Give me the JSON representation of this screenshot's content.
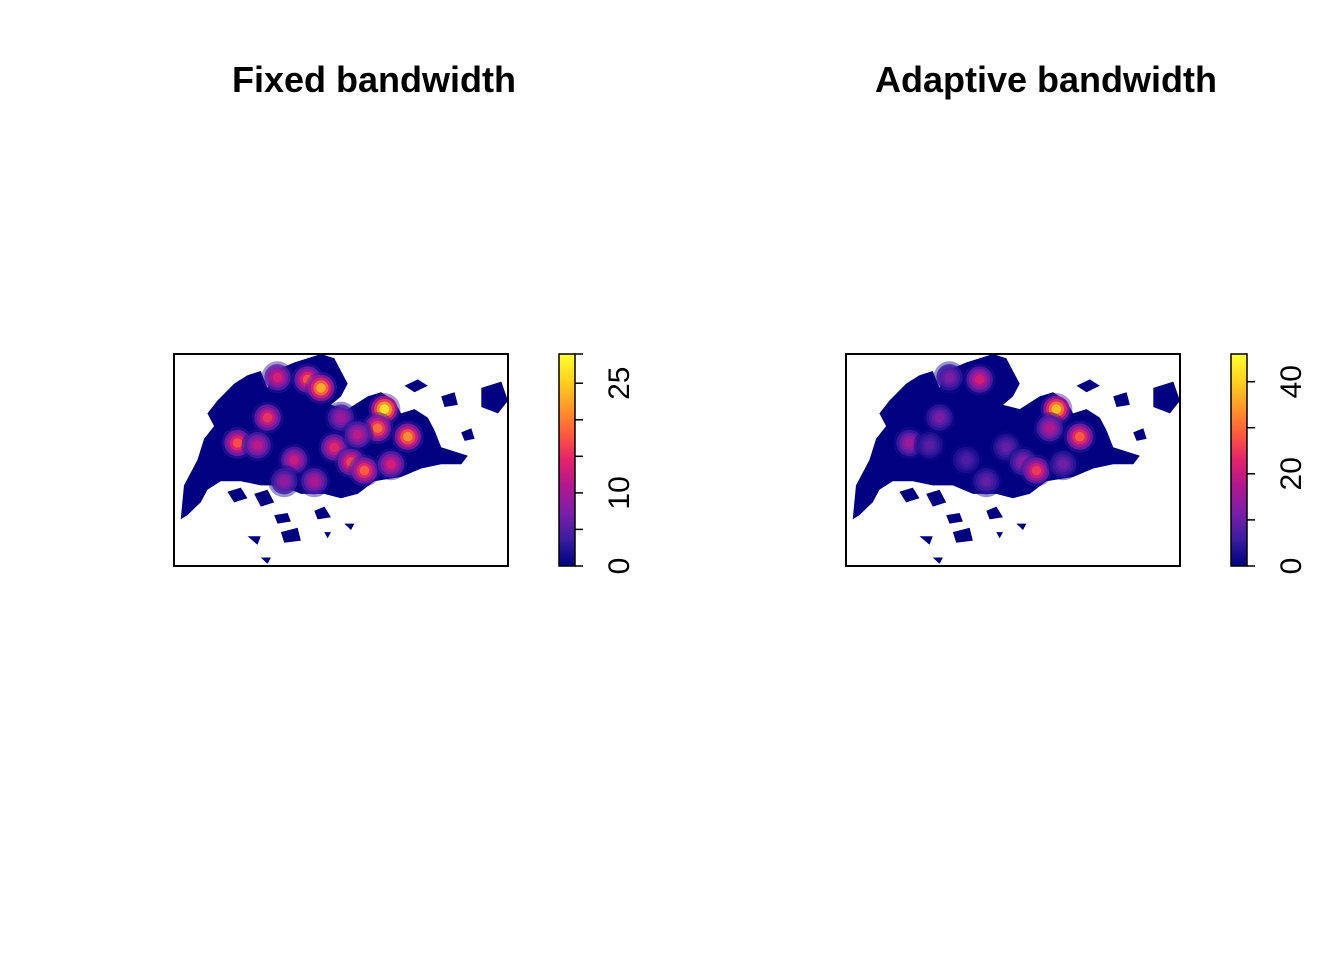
{
  "chart_data": [
    {
      "type": "heatmap",
      "title": "Fixed bandwidth",
      "legend": {
        "range": [
          0,
          29
        ],
        "label_ticks": [
          0,
          10,
          25
        ],
        "minor_ticks": [
          0,
          5,
          10,
          15,
          20,
          25,
          29
        ],
        "placement": "right"
      },
      "colormap": [
        "#000080",
        "#3a1ca0",
        "#7b1fa8",
        "#b0178f",
        "#e3236b",
        "#ff5a3c",
        "#ff9a28",
        "#ffd21e",
        "#ffff33"
      ],
      "hotspots": [
        {
          "u": 0.4,
          "v": 0.12,
          "value": 18
        },
        {
          "u": 0.44,
          "v": 0.16,
          "value": 24
        },
        {
          "u": 0.31,
          "v": 0.11,
          "value": 14
        },
        {
          "u": 0.63,
          "v": 0.26,
          "value": 28
        },
        {
          "u": 0.61,
          "v": 0.35,
          "value": 20
        },
        {
          "u": 0.7,
          "v": 0.39,
          "value": 22
        },
        {
          "u": 0.28,
          "v": 0.3,
          "value": 16
        },
        {
          "u": 0.19,
          "v": 0.42,
          "value": 18
        },
        {
          "u": 0.25,
          "v": 0.43,
          "value": 12
        },
        {
          "u": 0.36,
          "v": 0.5,
          "value": 13
        },
        {
          "u": 0.48,
          "v": 0.44,
          "value": 15
        },
        {
          "u": 0.53,
          "v": 0.51,
          "value": 17
        },
        {
          "u": 0.57,
          "v": 0.55,
          "value": 19
        },
        {
          "u": 0.65,
          "v": 0.52,
          "value": 14
        },
        {
          "u": 0.42,
          "v": 0.6,
          "value": 11
        },
        {
          "u": 0.33,
          "v": 0.6,
          "value": 9
        },
        {
          "u": 0.5,
          "v": 0.3,
          "value": 10
        },
        {
          "u": 0.55,
          "v": 0.38,
          "value": 12
        }
      ]
    },
    {
      "type": "heatmap",
      "title": "Adaptive bandwidth",
      "legend": {
        "range": [
          0,
          46
        ],
        "label_ticks": [
          0,
          20,
          40
        ],
        "minor_ticks": [
          0,
          10,
          20,
          30,
          40
        ],
        "placement": "right"
      },
      "colormap": [
        "#000080",
        "#3a1ca0",
        "#7b1fa8",
        "#b0178f",
        "#e3236b",
        "#ff5a3c",
        "#ff9a28",
        "#ffd21e",
        "#ffff33"
      ],
      "hotspots": [
        {
          "u": 0.4,
          "v": 0.12,
          "value": 22
        },
        {
          "u": 0.31,
          "v": 0.11,
          "value": 12
        },
        {
          "u": 0.63,
          "v": 0.26,
          "value": 40
        },
        {
          "u": 0.61,
          "v": 0.35,
          "value": 18
        },
        {
          "u": 0.7,
          "v": 0.39,
          "value": 30
        },
        {
          "u": 0.28,
          "v": 0.3,
          "value": 12
        },
        {
          "u": 0.19,
          "v": 0.42,
          "value": 16
        },
        {
          "u": 0.25,
          "v": 0.43,
          "value": 9
        },
        {
          "u": 0.48,
          "v": 0.44,
          "value": 10
        },
        {
          "u": 0.53,
          "v": 0.51,
          "value": 14
        },
        {
          "u": 0.57,
          "v": 0.55,
          "value": 26
        },
        {
          "u": 0.65,
          "v": 0.52,
          "value": 11
        },
        {
          "u": 0.42,
          "v": 0.6,
          "value": 10
        },
        {
          "u": 0.36,
          "v": 0.5,
          "value": 8
        }
      ]
    }
  ]
}
